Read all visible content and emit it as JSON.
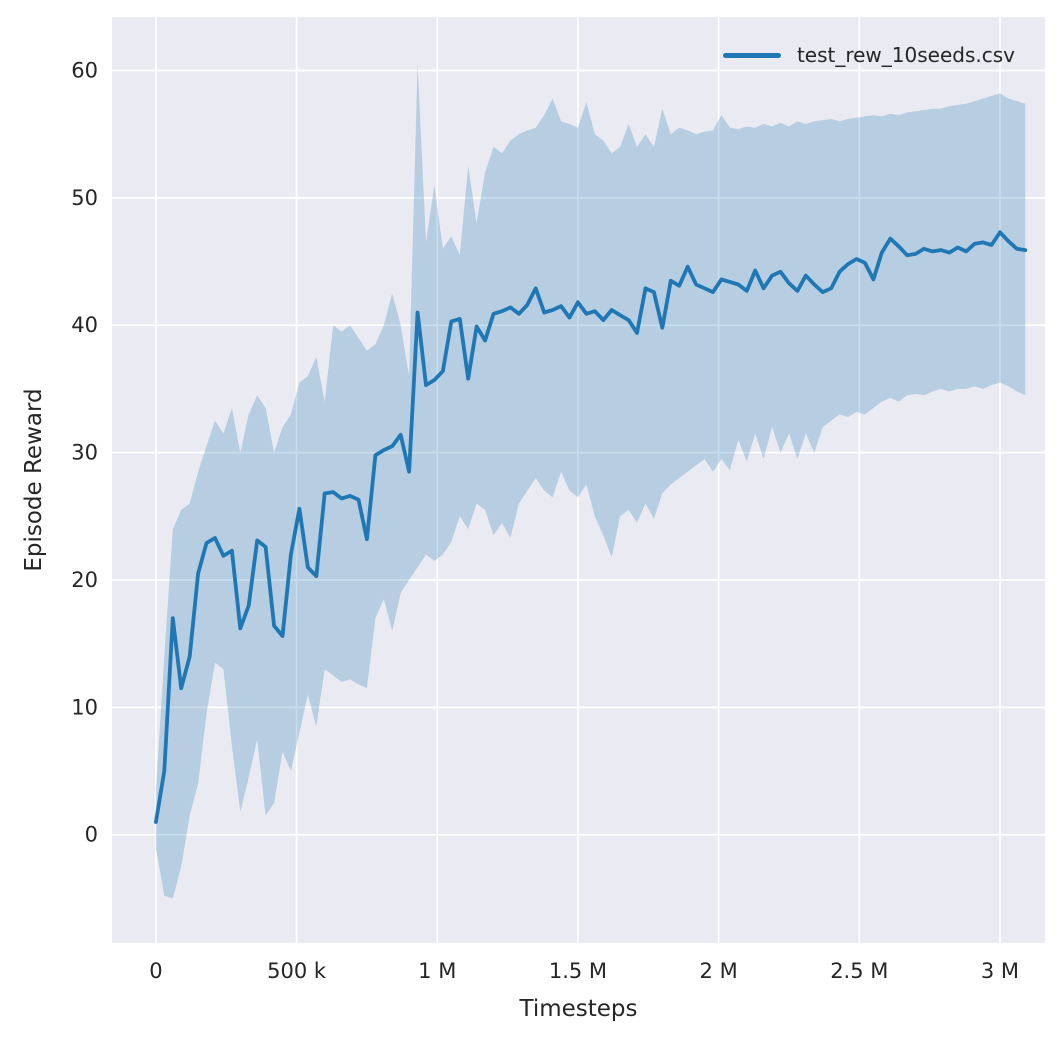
{
  "chart_data": {
    "type": "line",
    "title": "",
    "xlabel": "Timesteps",
    "ylabel": "Episode Reward",
    "grid": true,
    "legend_position": "upper right",
    "xlim": [
      -156000,
      3160000
    ],
    "ylim": [
      -8.5,
      64.2
    ],
    "x_ticks": [
      {
        "value": 0,
        "label": "0"
      },
      {
        "value": 500000,
        "label": "500 k"
      },
      {
        "value": 1000000,
        "label": "1 M"
      },
      {
        "value": 1500000,
        "label": "1.5 M"
      },
      {
        "value": 2000000,
        "label": "2 M"
      },
      {
        "value": 2500000,
        "label": "2.5 M"
      },
      {
        "value": 3000000,
        "label": "3 M"
      }
    ],
    "y_ticks": [
      {
        "value": 0,
        "label": "0"
      },
      {
        "value": 10,
        "label": "10"
      },
      {
        "value": 20,
        "label": "20"
      },
      {
        "value": 30,
        "label": "30"
      },
      {
        "value": 40,
        "label": "40"
      },
      {
        "value": 50,
        "label": "50"
      },
      {
        "value": 60,
        "label": "60"
      }
    ],
    "style": {
      "plot_bg": "#eaeaf2",
      "grid_color": "#ffffff",
      "line_color": "#1f77b4",
      "band_color": "#1f77b4",
      "band_opacity": 0.25,
      "text_color": "#262626"
    },
    "series": [
      {
        "name": "test_rew_10seeds.csv",
        "x": [
          0,
          30000,
          60000,
          90000,
          120000,
          150000,
          180000,
          210000,
          240000,
          270000,
          300000,
          330000,
          360000,
          390000,
          420000,
          450000,
          480000,
          510000,
          540000,
          570000,
          600000,
          630000,
          660000,
          690000,
          720000,
          750000,
          780000,
          810000,
          840000,
          870000,
          900000,
          930000,
          960000,
          990000,
          1020000,
          1050000,
          1080000,
          1110000,
          1140000,
          1170000,
          1200000,
          1230000,
          1260000,
          1290000,
          1320000,
          1350000,
          1380000,
          1410000,
          1440000,
          1470000,
          1500000,
          1530000,
          1560000,
          1590000,
          1620000,
          1650000,
          1680000,
          1710000,
          1740000,
          1770000,
          1800000,
          1830000,
          1860000,
          1890000,
          1920000,
          1950000,
          1980000,
          2010000,
          2040000,
          2070000,
          2100000,
          2130000,
          2160000,
          2190000,
          2220000,
          2250000,
          2280000,
          2310000,
          2340000,
          2370000,
          2400000,
          2430000,
          2460000,
          2490000,
          2520000,
          2550000,
          2580000,
          2610000,
          2640000,
          2670000,
          2700000,
          2730000,
          2760000,
          2790000,
          2820000,
          2850000,
          2880000,
          2910000,
          2940000,
          2970000,
          3000000,
          3030000,
          3060000,
          3090000
        ],
        "mean": [
          1.0,
          5.0,
          17.0,
          11.5,
          14.0,
          20.5,
          22.9,
          23.3,
          21.9,
          22.3,
          16.2,
          18.0,
          23.1,
          22.6,
          16.4,
          15.6,
          22.0,
          25.6,
          21.0,
          20.3,
          26.8,
          26.9,
          26.4,
          26.6,
          26.3,
          23.2,
          29.8,
          30.2,
          30.5,
          31.4,
          28.5,
          41.0,
          35.3,
          35.7,
          36.4,
          40.3,
          40.5,
          35.8,
          39.9,
          38.8,
          40.9,
          41.1,
          41.4,
          40.9,
          41.6,
          42.9,
          41.0,
          41.2,
          41.5,
          40.6,
          41.8,
          40.9,
          41.1,
          40.4,
          41.2,
          40.8,
          40.4,
          39.4,
          42.9,
          42.6,
          39.8,
          43.5,
          43.1,
          44.6,
          43.2,
          42.9,
          42.6,
          43.6,
          43.4,
          43.2,
          42.7,
          44.3,
          42.9,
          43.9,
          44.2,
          43.3,
          42.7,
          43.9,
          43.2,
          42.6,
          42.9,
          44.2,
          44.8,
          45.2,
          44.9,
          43.6,
          45.7,
          46.8,
          46.2,
          45.5,
          45.6,
          46.0,
          45.8,
          45.9,
          45.7,
          46.1,
          45.8,
          46.4,
          46.5,
          46.3,
          47.3,
          46.6,
          46.0,
          45.9
        ],
        "band_low": [
          -1.0,
          -4.8,
          -5.0,
          -2.5,
          1.5,
          4.0,
          9.5,
          13.5,
          13.0,
          7.0,
          1.8,
          4.5,
          7.5,
          1.5,
          2.5,
          6.5,
          5.0,
          8.0,
          11.0,
          8.5,
          13.0,
          12.5,
          12.0,
          12.2,
          11.8,
          11.5,
          17.0,
          18.5,
          16.0,
          19.0,
          20.0,
          21.0,
          22.0,
          21.5,
          22.0,
          23.0,
          25.0,
          24.0,
          26.0,
          25.5,
          23.5,
          24.5,
          23.3,
          26.0,
          27.0,
          28.0,
          27.0,
          26.5,
          28.5,
          27.0,
          26.5,
          27.5,
          25.0,
          23.5,
          21.8,
          25.0,
          25.5,
          24.5,
          26.0,
          24.8,
          26.8,
          27.5,
          28.0,
          28.5,
          29.0,
          29.5,
          28.5,
          29.5,
          28.6,
          31.0,
          29.3,
          31.5,
          29.5,
          32.0,
          30.0,
          31.5,
          29.5,
          31.5,
          30.0,
          32.0,
          32.5,
          33.0,
          32.8,
          33.2,
          33.0,
          33.5,
          34.0,
          34.3,
          34.0,
          34.5,
          34.6,
          34.5,
          34.8,
          35.0,
          34.8,
          35.0,
          35.0,
          35.2,
          35.0,
          35.3,
          35.5,
          35.2,
          34.8,
          34.5
        ],
        "band_high": [
          3.5,
          14.0,
          24.0,
          25.5,
          26.0,
          28.5,
          30.5,
          32.5,
          31.5,
          33.5,
          30.0,
          33.0,
          34.5,
          33.5,
          30.0,
          32.0,
          33.0,
          35.5,
          36.0,
          37.5,
          34.0,
          40.0,
          39.5,
          40.0,
          39.0,
          38.0,
          38.5,
          40.0,
          42.5,
          40.0,
          36.0,
          60.5,
          46.5,
          51.0,
          46.0,
          47.0,
          45.5,
          52.5,
          48.0,
          52.0,
          54.0,
          53.5,
          54.5,
          55.0,
          55.3,
          55.5,
          56.5,
          57.8,
          56.0,
          55.8,
          55.5,
          57.5,
          55.0,
          54.5,
          53.5,
          54.0,
          55.8,
          54.0,
          55.0,
          54.0,
          57.0,
          55.0,
          55.5,
          55.3,
          55.0,
          55.2,
          55.3,
          56.5,
          55.5,
          55.4,
          55.6,
          55.5,
          55.8,
          55.6,
          55.9,
          55.6,
          56.0,
          55.8,
          56.0,
          56.1,
          56.2,
          56.0,
          56.2,
          56.3,
          56.4,
          56.5,
          56.4,
          56.6,
          56.5,
          56.7,
          56.8,
          56.9,
          57.0,
          57.0,
          57.2,
          57.3,
          57.4,
          57.6,
          57.8,
          58.0,
          58.2,
          57.8,
          57.6,
          57.4
        ]
      }
    ]
  }
}
